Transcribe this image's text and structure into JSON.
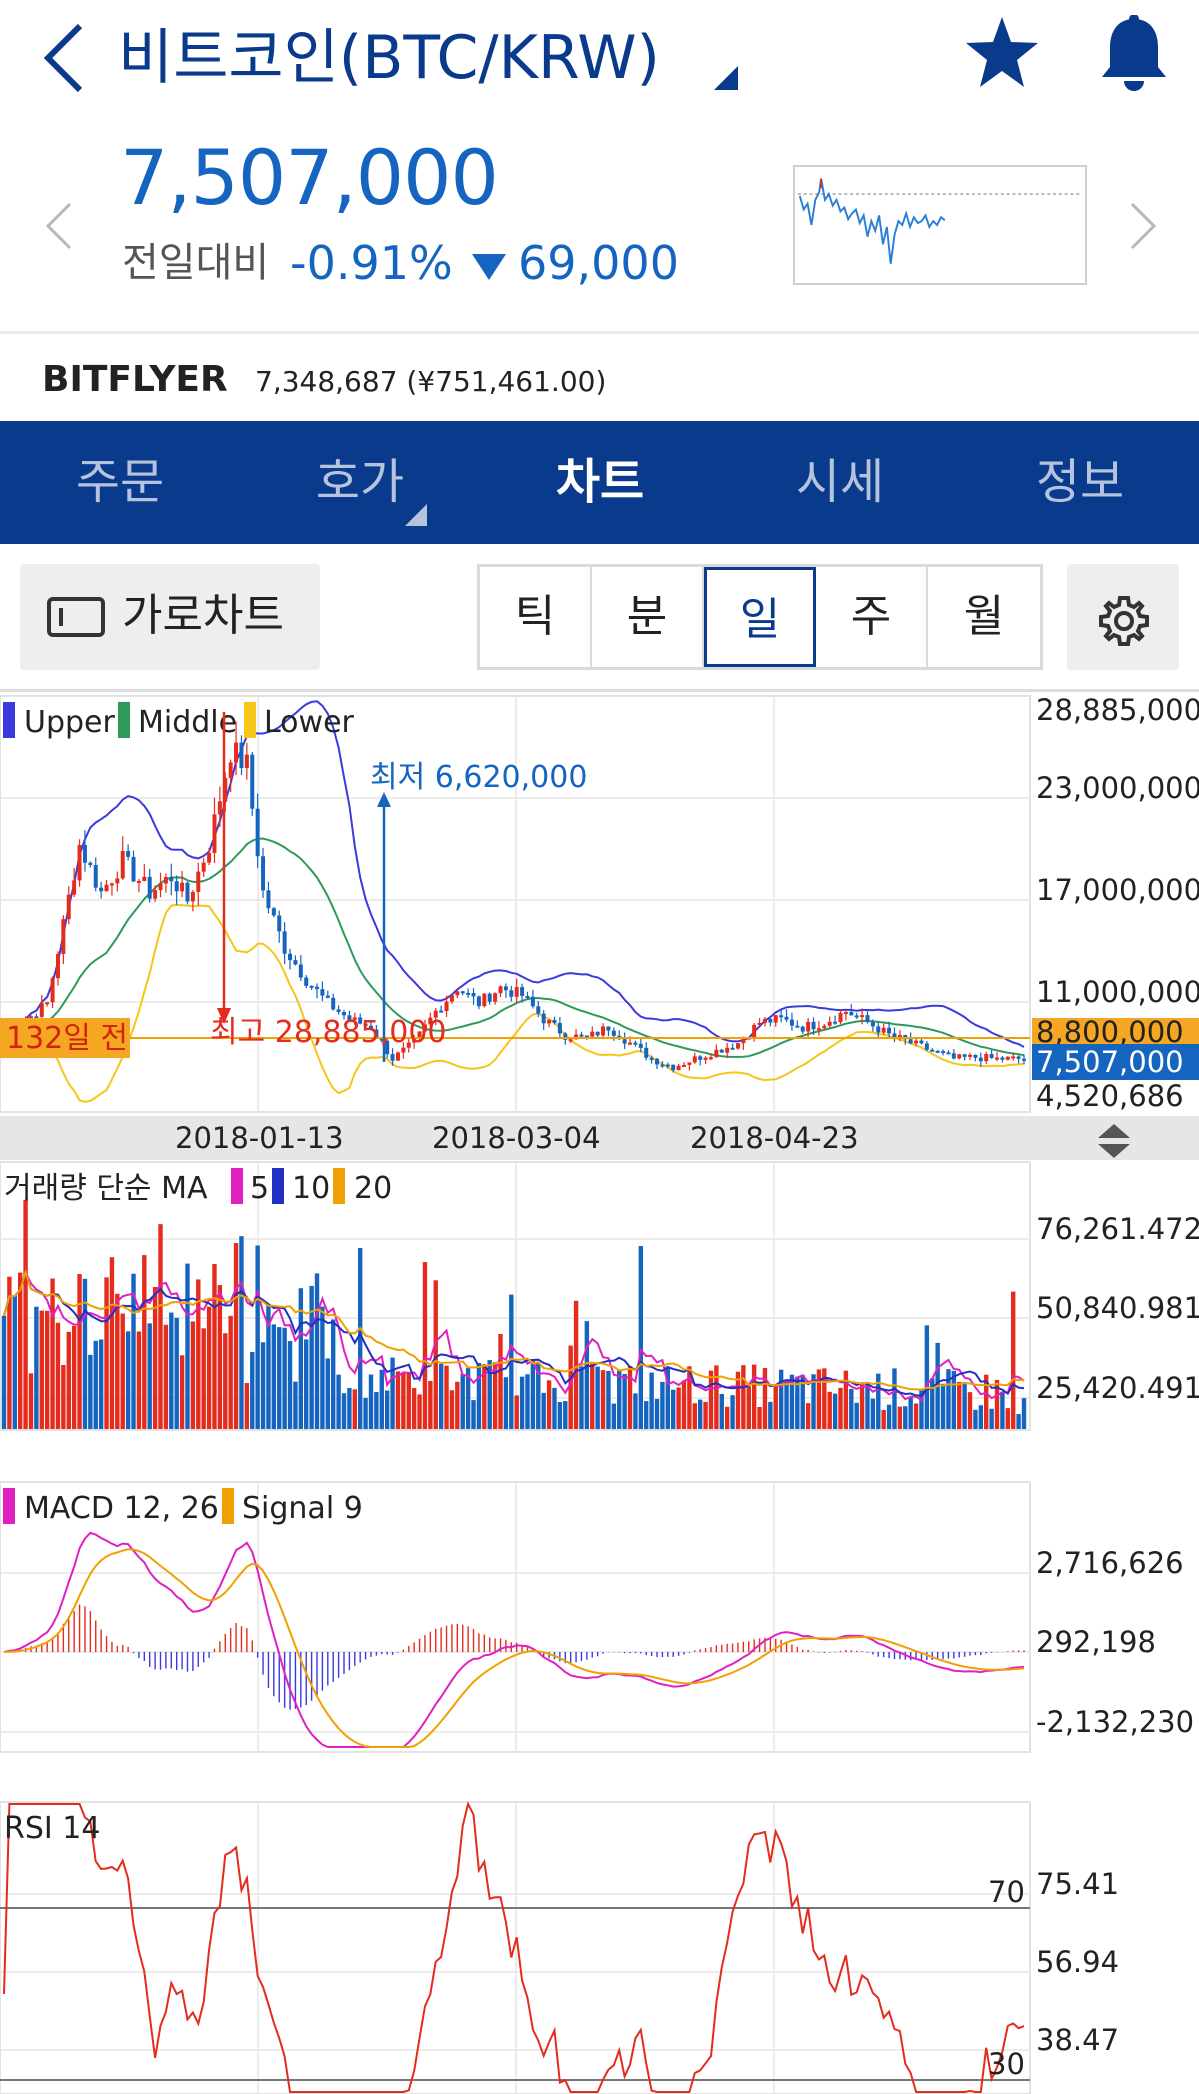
{
  "header": {
    "title": "비트코인(BTC/KRW)",
    "price": "7,507,000",
    "compare_label": "전일대비",
    "change_pct": "-0.91%",
    "change_amount": "69,000",
    "exchange_name": "BITFLYER",
    "exchange_price": "7,348,687 (¥751,461.00)",
    "icons": [
      "back-icon",
      "star-icon",
      "bell-icon",
      "prev-icon",
      "next-icon"
    ]
  },
  "tabs": [
    {
      "label": "주문"
    },
    {
      "label": "호가"
    },
    {
      "label": "차트",
      "active": true
    },
    {
      "label": "시세"
    },
    {
      "label": "정보"
    }
  ],
  "toolbar": {
    "landscape_label": "가로차트",
    "periods": [
      {
        "label": "틱"
      },
      {
        "label": "분"
      },
      {
        "label": "일",
        "active": true
      },
      {
        "label": "주"
      },
      {
        "label": "월"
      }
    ],
    "settings_icon": "gear-icon"
  },
  "colors": {
    "brand": "#0a3a8c",
    "down": "#1565c0",
    "up": "#e52b1c",
    "upper_band": "#3a3ae0",
    "middle_band": "#2e9a5a",
    "lower_band": "#f5c518",
    "ma5": "#e020c0",
    "ma20": "#f0a000",
    "signal": "#f0a000"
  },
  "chart_data": [
    {
      "type": "candlestick",
      "legend": [
        "Upper",
        "Middle",
        "Lower"
      ],
      "y_ticks": [
        "28,885,000",
        "23,000,000",
        "17,000,000",
        "11,000,000",
        "4,520,686"
      ],
      "ylim": [
        4520686,
        28885000
      ],
      "x_ticks": [
        "2018-01-13",
        "2018-03-04",
        "2018-04-23"
      ],
      "annotations": {
        "low": "최저 6,620,000",
        "high": "최고 28,885,000",
        "days_ago": "132일 전",
        "current_price_tag": "7,507,000",
        "ref_line_tag": "8,800,000"
      },
      "approx_close_path": [
        [
          0,
          8.8
        ],
        [
          8,
          11
        ],
        [
          14,
          21
        ],
        [
          18,
          18
        ],
        [
          22,
          20
        ],
        [
          27,
          18
        ],
        [
          31,
          19
        ],
        [
          34,
          17.5
        ],
        [
          38,
          21
        ],
        [
          42,
          27
        ],
        [
          45,
          26
        ],
        [
          48,
          18
        ],
        [
          52,
          14.5
        ],
        [
          56,
          12.5
        ],
        [
          60,
          11
        ],
        [
          64,
          10
        ],
        [
          68,
          9.5
        ],
        [
          72,
          7.5
        ],
        [
          76,
          8.5
        ],
        [
          80,
          10.5
        ],
        [
          84,
          12
        ],
        [
          88,
          11
        ],
        [
          92,
          12
        ],
        [
          96,
          11.5
        ],
        [
          100,
          10
        ],
        [
          104,
          9
        ],
        [
          108,
          8.8
        ],
        [
          112,
          9.5
        ],
        [
          116,
          8.5
        ],
        [
          120,
          7.5
        ],
        [
          124,
          7
        ],
        [
          128,
          7.5
        ],
        [
          132,
          8
        ],
        [
          136,
          8.5
        ],
        [
          140,
          9.8
        ],
        [
          144,
          10
        ],
        [
          148,
          9.5
        ],
        [
          152,
          9.8
        ],
        [
          156,
          10.5
        ],
        [
          160,
          9.8
        ],
        [
          164,
          9
        ],
        [
          168,
          8.5
        ],
        [
          172,
          8
        ],
        [
          176,
          7.5
        ],
        [
          180,
          7.6
        ],
        [
          184,
          7.5
        ],
        [
          188,
          7.5
        ]
      ]
    },
    {
      "type": "bar",
      "title": "거래량 단순 MA",
      "legend": [
        "5",
        "10",
        "20"
      ],
      "y_ticks": [
        "76,261.472",
        "50,840.981",
        "25,420.491"
      ]
    },
    {
      "type": "line",
      "title": "MACD 12, 26",
      "legend": [
        "MACD 12, 26",
        "Signal 9"
      ],
      "y_ticks": [
        "2,716,626",
        "292,198",
        "-2,132,230"
      ]
    },
    {
      "type": "line",
      "title": "RSI 14",
      "y_ticks": [
        "75.41",
        "56.94",
        "38.47"
      ],
      "levels": [
        "70",
        "30"
      ]
    }
  ]
}
